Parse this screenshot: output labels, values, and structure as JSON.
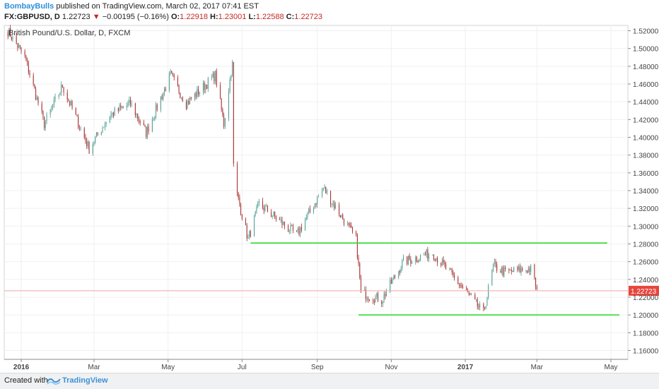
{
  "header": {
    "author": "BombayBulls",
    "published_text": "published on TradingView.com, March 02, 2017 07:41 EST",
    "symbol": "FX:GBPUSD, D",
    "last_price": "1.22723",
    "change_arrow": "▼",
    "change": "−0.00195 (−0.16%)",
    "o_label": "O:",
    "o_value": "1.22918",
    "h_label": "H:",
    "h_value": "1.23001",
    "l_label": "L:",
    "l_value": "1.22588",
    "c_label": "C:",
    "c_value": "1.22723"
  },
  "footer": {
    "created_with": "Created with",
    "brand": "TradingView"
  },
  "colors": {
    "up": "#4a9b8f",
    "down": "#a52a2a",
    "trendline": "#33dd33",
    "price_line": "#f0a8a0",
    "price_label_bg": "#e8453c",
    "grid": "#eef0f2"
  },
  "chart_data": {
    "type": "candlestick",
    "title": "British Pound/U.S. Dollar, D, FXCM",
    "x_tick_labels": [
      "2016",
      "Mar",
      "May",
      "Jul",
      "Sep",
      "Nov",
      "2017",
      "Mar",
      "May"
    ],
    "y_tick_labels": [
      "1.52000",
      "1.50000",
      "1.48000",
      "1.46000",
      "1.44000",
      "1.42000",
      "1.40000",
      "1.38000",
      "1.36000",
      "1.34000",
      "1.32000",
      "1.30000",
      "1.28000",
      "1.26000",
      "1.24000",
      "1.22000",
      "1.20000",
      "1.18000",
      "1.16000"
    ],
    "ylim": [
      1.15,
      1.526
    ],
    "xlim": [
      "2015-12-18",
      "2017-05-15"
    ],
    "last_price_label": "1.22723",
    "last_price": 1.22723,
    "series": [
      {
        "date": "2015-12-21",
        "close": 1.52
      },
      {
        "date": "2016-01-04",
        "close": 1.49
      },
      {
        "date": "2016-01-20",
        "close": 1.415
      },
      {
        "date": "2016-02-04",
        "close": 1.458
      },
      {
        "date": "2016-02-26",
        "close": 1.387
      },
      {
        "date": "2016-03-14",
        "close": 1.425
      },
      {
        "date": "2016-03-31",
        "close": 1.438
      },
      {
        "date": "2016-04-13",
        "close": 1.405
      },
      {
        "date": "2016-05-03",
        "close": 1.47
      },
      {
        "date": "2016-05-16",
        "close": 1.438
      },
      {
        "date": "2016-06-09",
        "close": 1.47
      },
      {
        "date": "2016-06-16",
        "close": 1.415
      },
      {
        "date": "2016-06-23",
        "close": 1.485
      },
      {
        "date": "2016-06-24",
        "close": 1.367
      },
      {
        "date": "2016-06-27",
        "close": 1.335
      },
      {
        "date": "2016-07-06",
        "close": 1.285
      },
      {
        "date": "2016-07-15",
        "close": 1.325
      },
      {
        "date": "2016-08-15",
        "close": 1.29
      },
      {
        "date": "2016-09-06",
        "close": 1.343
      },
      {
        "date": "2016-10-03",
        "close": 1.285
      },
      {
        "date": "2016-10-07",
        "close": 1.225
      },
      {
        "date": "2016-10-24",
        "close": 1.217
      },
      {
        "date": "2016-11-11",
        "close": 1.26
      },
      {
        "date": "2016-12-05",
        "close": 1.27
      },
      {
        "date": "2016-12-30",
        "close": 1.23
      },
      {
        "date": "2017-01-16",
        "close": 1.202
      },
      {
        "date": "2017-01-24",
        "close": 1.255
      },
      {
        "date": "2017-02-03",
        "close": 1.248
      },
      {
        "date": "2017-02-24",
        "close": 1.252
      },
      {
        "date": "2017-03-01",
        "close": 1.229
      }
    ],
    "annotations": [
      {
        "type": "horizontal_line",
        "price": 1.281,
        "from": "2016-07-08",
        "to": "2017-04-28"
      },
      {
        "type": "horizontal_line",
        "price": 1.2,
        "from": "2016-10-05",
        "to": "2017-05-08"
      }
    ]
  }
}
